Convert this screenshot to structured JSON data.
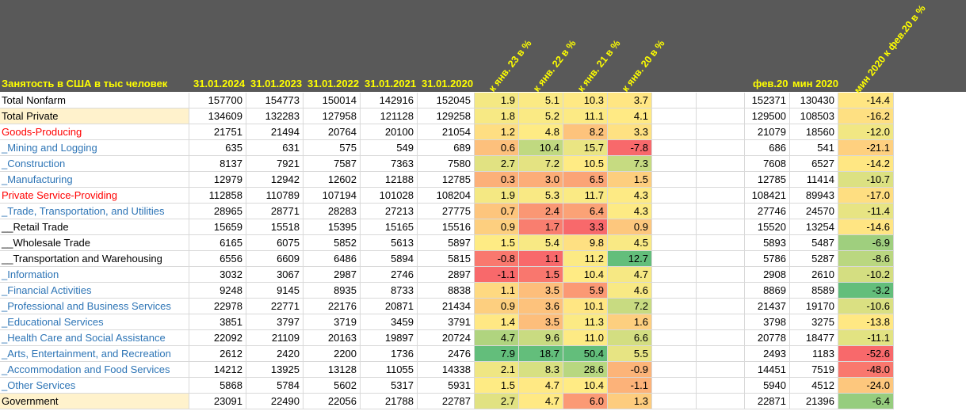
{
  "header": {
    "title": "Занятость в США в тыс человек",
    "date_cols": [
      "31.01.2024",
      "31.01.2023",
      "31.01.2022",
      "31.01.2021",
      "31.01.2020"
    ],
    "pct_cols": [
      "к янв. 23 в %",
      "к янв. 22 в %",
      "к янв. 21 в %",
      "к янв. 20 в %"
    ],
    "feb_col": "фев.20",
    "min_col": "мин 2020",
    "min_feb_col": "мин 2020 к фев.20 в %"
  },
  "colors": {
    "header_bg": "#595959",
    "header_text": "#ffff00",
    "label_highlight_bg": "#fff2cc",
    "red_label": "#ff0000",
    "blue_label": "#2e75b6"
  },
  "rows": [
    {
      "label": "Total Nonfarm",
      "style": "black",
      "v": [
        "157700",
        "154773",
        "150014",
        "142916",
        "152045"
      ],
      "p": [
        "1.9",
        "5.1",
        "10.3",
        "3.7"
      ],
      "f": "152371",
      "m": "130430",
      "mf": "-14.4"
    },
    {
      "label": "Total Private",
      "style": "highlight",
      "v": [
        "134609",
        "132283",
        "127958",
        "121128",
        "129258"
      ],
      "p": [
        "1.8",
        "5.2",
        "11.1",
        "4.1"
      ],
      "f": "129500",
      "m": "108503",
      "mf": "-16.2"
    },
    {
      "label": "Goods-Producing",
      "style": "red",
      "v": [
        "21751",
        "21494",
        "20764",
        "20100",
        "21054"
      ],
      "p": [
        "1.2",
        "4.8",
        "8.2",
        "3.3"
      ],
      "f": "21079",
      "m": "18560",
      "mf": "-12.0"
    },
    {
      "label": "_Mining and Logging",
      "style": "blue",
      "v": [
        "635",
        "631",
        "575",
        "549",
        "689"
      ],
      "p": [
        "0.6",
        "10.4",
        "15.7",
        "-7.8"
      ],
      "f": "686",
      "m": "541",
      "mf": "-21.1"
    },
    {
      "label": "_Construction",
      "style": "blue",
      "v": [
        "8137",
        "7921",
        "7587",
        "7363",
        "7580"
      ],
      "p": [
        "2.7",
        "7.2",
        "10.5",
        "7.3"
      ],
      "f": "7608",
      "m": "6527",
      "mf": "-14.2"
    },
    {
      "label": "_Manufacturing",
      "style": "blue",
      "v": [
        "12979",
        "12942",
        "12602",
        "12188",
        "12785"
      ],
      "p": [
        "0.3",
        "3.0",
        "6.5",
        "1.5"
      ],
      "f": "12785",
      "m": "11414",
      "mf": "-10.7"
    },
    {
      "label": "Private Service-Providing",
      "style": "red",
      "v": [
        "112858",
        "110789",
        "107194",
        "101028",
        "108204"
      ],
      "p": [
        "1.9",
        "5.3",
        "11.7",
        "4.3"
      ],
      "f": "108421",
      "m": "89943",
      "mf": "-17.0"
    },
    {
      "label": "_Trade, Transportation, and Utilities",
      "style": "blue",
      "v": [
        "28965",
        "28771",
        "28283",
        "27213",
        "27775"
      ],
      "p": [
        "0.7",
        "2.4",
        "6.4",
        "4.3"
      ],
      "f": "27746",
      "m": "24570",
      "mf": "-11.4"
    },
    {
      "label": "__Retail Trade",
      "style": "black",
      "v": [
        "15659",
        "15518",
        "15395",
        "15165",
        "15516"
      ],
      "p": [
        "0.9",
        "1.7",
        "3.3",
        "0.9"
      ],
      "f": "15520",
      "m": "13254",
      "mf": "-14.6"
    },
    {
      "label": "__Wholesale Trade",
      "style": "black",
      "v": [
        "6165",
        "6075",
        "5852",
        "5613",
        "5897"
      ],
      "p": [
        "1.5",
        "5.4",
        "9.8",
        "4.5"
      ],
      "f": "5893",
      "m": "5487",
      "mf": "-6.9"
    },
    {
      "label": "__Transportation and Warehousing",
      "style": "black",
      "v": [
        "6556",
        "6609",
        "6486",
        "5894",
        "5815"
      ],
      "p": [
        "-0.8",
        "1.1",
        "11.2",
        "12.7"
      ],
      "f": "5786",
      "m": "5287",
      "mf": "-8.6"
    },
    {
      "label": "_Information",
      "style": "blue",
      "v": [
        "3032",
        "3067",
        "2987",
        "2746",
        "2897"
      ],
      "p": [
        "-1.1",
        "1.5",
        "10.4",
        "4.7"
      ],
      "f": "2908",
      "m": "2610",
      "mf": "-10.2"
    },
    {
      "label": "_Financial Activities",
      "style": "blue",
      "v": [
        "9248",
        "9145",
        "8935",
        "8733",
        "8838"
      ],
      "p": [
        "1.1",
        "3.5",
        "5.9",
        "4.6"
      ],
      "f": "8869",
      "m": "8589",
      "mf": "-3.2"
    },
    {
      "label": "_Professional and Business Services",
      "style": "blue",
      "v": [
        "22978",
        "22771",
        "22176",
        "20871",
        "21434"
      ],
      "p": [
        "0.9",
        "3.6",
        "10.1",
        "7.2"
      ],
      "f": "21437",
      "m": "19170",
      "mf": "-10.6"
    },
    {
      "label": "_Educational Services",
      "style": "blue",
      "v": [
        "3851",
        "3797",
        "3719",
        "3459",
        "3791"
      ],
      "p": [
        "1.4",
        "3.5",
        "11.3",
        "1.6"
      ],
      "f": "3798",
      "m": "3275",
      "mf": "-13.8"
    },
    {
      "label": "_Health Care and Social Assistance",
      "style": "blue",
      "v": [
        "22092",
        "21109",
        "20163",
        "19897",
        "20724"
      ],
      "p": [
        "4.7",
        "9.6",
        "11.0",
        "6.6"
      ],
      "f": "20778",
      "m": "18477",
      "mf": "-11.1"
    },
    {
      "label": "_Arts, Entertainment, and Recreation",
      "style": "blue",
      "v": [
        "2612",
        "2420",
        "2200",
        "1736",
        "2476"
      ],
      "p": [
        "7.9",
        "18.7",
        "50.4",
        "5.5"
      ],
      "f": "2493",
      "m": "1183",
      "mf": "-52.6"
    },
    {
      "label": "_Accommodation and Food Services",
      "style": "blue",
      "v": [
        "14212",
        "13925",
        "13128",
        "11055",
        "14338"
      ],
      "p": [
        "2.1",
        "8.3",
        "28.6",
        "-0.9"
      ],
      "f": "14451",
      "m": "7519",
      "mf": "-48.0"
    },
    {
      "label": "_Other Services",
      "style": "blue",
      "v": [
        "5868",
        "5784",
        "5602",
        "5317",
        "5931"
      ],
      "p": [
        "1.5",
        "4.7",
        "10.4",
        "-1.1"
      ],
      "f": "5940",
      "m": "4512",
      "mf": "-24.0"
    },
    {
      "label": "Government",
      "style": "highlight",
      "v": [
        "23091",
        "22490",
        "22056",
        "21788",
        "22787"
      ],
      "p": [
        "2.7",
        "4.7",
        "6.0",
        "1.3"
      ],
      "f": "22871",
      "m": "21396",
      "mf": "-6.4"
    }
  ]
}
